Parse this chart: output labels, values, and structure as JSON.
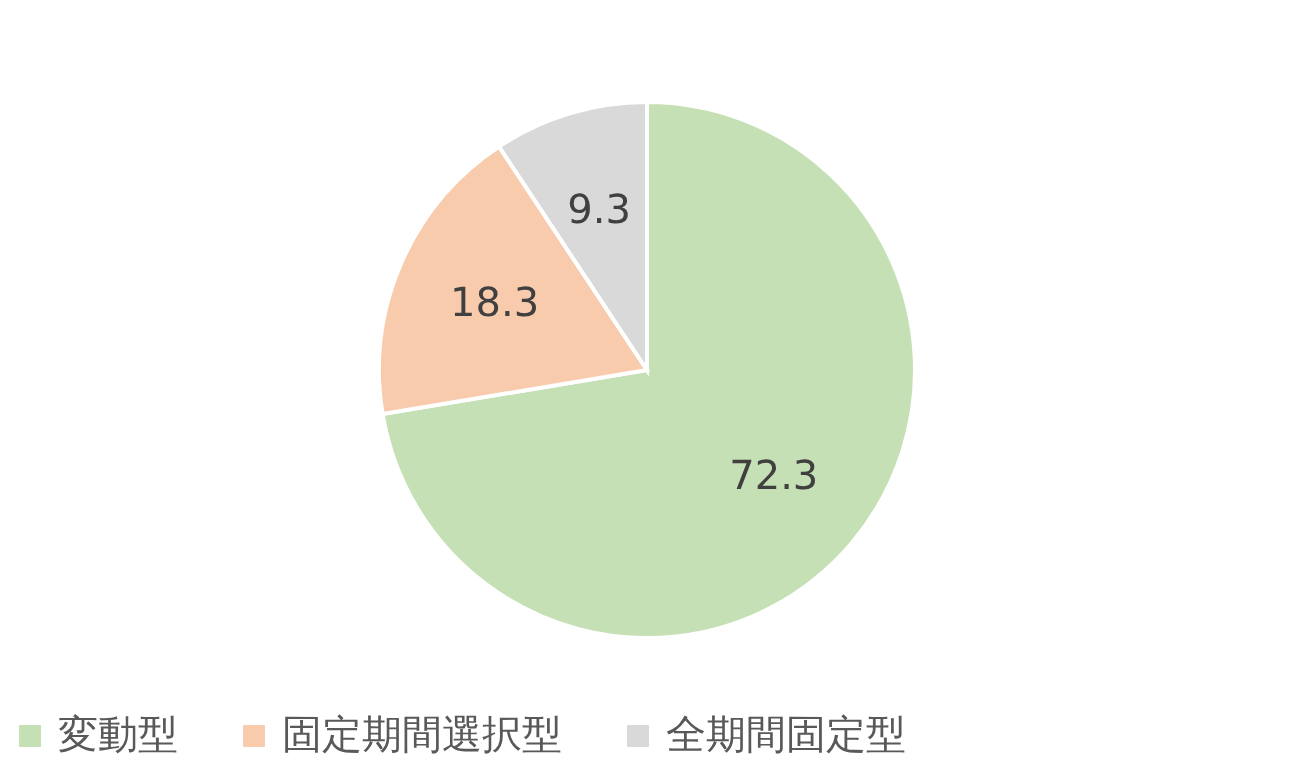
{
  "chart_data": {
    "type": "pie",
    "categories": [
      "変動型",
      "固定期間選択型",
      "全期間固定型"
    ],
    "values": [
      72.3,
      18.3,
      9.3
    ],
    "colors": [
      "#c5e0b4",
      "#f8cbad",
      "#d9d9d9"
    ],
    "data_labels": true,
    "legend": "bottom"
  }
}
